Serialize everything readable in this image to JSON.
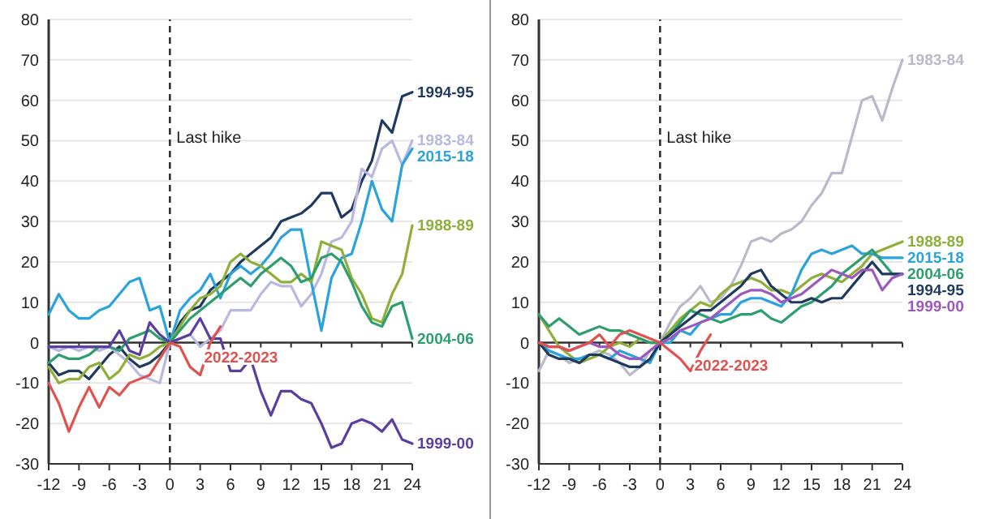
{
  "chart_data": [
    {
      "type": "line",
      "x": [
        -12,
        -11,
        -10,
        -9,
        -8,
        -7,
        -6,
        -5,
        -4,
        -3,
        -2,
        -1,
        0,
        1,
        2,
        3,
        4,
        5,
        6,
        7,
        8,
        9,
        10,
        11,
        12,
        13,
        14,
        15,
        16,
        17,
        18,
        19,
        20,
        21,
        22,
        23,
        24
      ],
      "xlim": [
        -12,
        24
      ],
      "xticks": [
        -12,
        -9,
        -6,
        -3,
        0,
        3,
        6,
        9,
        12,
        15,
        18,
        21,
        24
      ],
      "ylim": [
        -30,
        80
      ],
      "yticks": [
        -30,
        -20,
        -10,
        0,
        10,
        20,
        30,
        40,
        50,
        60,
        70,
        80
      ],
      "grid": "y",
      "ref_lines": [
        {
          "axis": "x",
          "value": 0,
          "label": "Last hike",
          "line_style": "dashed"
        }
      ],
      "series": [
        {
          "name": "1994-95",
          "color": "#1f3a5f",
          "values": [
            -5,
            -8,
            -7,
            -7,
            -9,
            -6,
            -3,
            -1,
            -4,
            -6,
            -5,
            -3,
            0,
            5,
            8,
            9,
            13,
            15,
            17,
            20,
            22,
            24,
            26,
            30,
            31,
            32,
            34,
            37,
            37,
            31,
            33,
            40,
            45,
            55,
            52,
            61,
            62
          ]
        },
        {
          "name": "1983-84",
          "color": "#b8b8e0",
          "values": [
            -1,
            -2,
            -1,
            -2,
            -1,
            -2,
            -1,
            -3,
            -5,
            -8,
            -9,
            -10,
            0,
            1,
            2,
            -1,
            1,
            3,
            8,
            8,
            8,
            12,
            15,
            14,
            14,
            9,
            12,
            17,
            25,
            26,
            30,
            43,
            41,
            48,
            50,
            44,
            50
          ]
        },
        {
          "name": "2015-18",
          "color": "#2aa3dc",
          "values": [
            7,
            12,
            8,
            6,
            6,
            8,
            9,
            12,
            15,
            16,
            8,
            9,
            0,
            8,
            11,
            13,
            17,
            11,
            17,
            19,
            17,
            19,
            22,
            26,
            28,
            28,
            15,
            3,
            16,
            21,
            22,
            30,
            40,
            33,
            30,
            44,
            48
          ]
        },
        {
          "name": "1988-89",
          "color": "#8fae3a",
          "values": [
            -6,
            -10,
            -9,
            -9,
            -6,
            -5,
            -9,
            -7,
            -3,
            -4,
            -3,
            -1,
            0,
            4,
            8,
            11,
            12,
            14,
            20,
            22,
            20,
            19,
            17,
            15,
            15,
            17,
            15,
            25,
            24,
            23,
            16,
            12,
            6,
            5,
            12,
            17,
            29
          ]
        },
        {
          "name": "2004-06",
          "color": "#2e9e6e",
          "values": [
            -5,
            -3,
            -4,
            -4,
            -3,
            -1,
            -1,
            -2,
            1,
            2,
            3,
            1,
            0,
            3,
            6,
            8,
            10,
            12,
            14,
            16,
            14,
            17,
            19,
            21,
            19,
            15,
            16,
            21,
            22,
            20,
            15,
            9,
            5,
            4,
            9,
            10,
            1
          ]
        },
        {
          "name": "1999-00",
          "color": "#5b3fa0",
          "values": [
            -1,
            -1,
            -1,
            -1,
            -1,
            -1,
            -1,
            3,
            -2,
            -3,
            5,
            2,
            0,
            1,
            2,
            6,
            1,
            1,
            -7,
            -7,
            -4,
            -12,
            -18,
            -12,
            -12,
            -14,
            -15,
            -20,
            -26,
            -25,
            -20,
            -19,
            -20,
            -22,
            -19,
            -24,
            -25
          ]
        },
        {
          "name": "2022-2023",
          "color": "#e0524f",
          "x": [
            -12,
            -11,
            -10,
            -9,
            -8,
            -7,
            -6,
            -5,
            -4,
            -3,
            -2,
            -1,
            0,
            1,
            2,
            3,
            4,
            5
          ],
          "values": [
            -10,
            -15,
            -22,
            -16,
            -11,
            -16,
            -11,
            -13,
            -10,
            -9,
            -8,
            -4,
            0,
            -1,
            -6,
            -8,
            0,
            4
          ]
        }
      ]
    },
    {
      "type": "line",
      "x": [
        -12,
        -11,
        -10,
        -9,
        -8,
        -7,
        -6,
        -5,
        -4,
        -3,
        -2,
        -1,
        0,
        1,
        2,
        3,
        4,
        5,
        6,
        7,
        8,
        9,
        10,
        11,
        12,
        13,
        14,
        15,
        16,
        17,
        18,
        19,
        20,
        21,
        22,
        23,
        24
      ],
      "xlim": [
        -12,
        24
      ],
      "xticks": [
        -12,
        -9,
        -6,
        -3,
        0,
        3,
        6,
        9,
        12,
        15,
        18,
        21,
        24
      ],
      "ylim": [
        -30,
        80
      ],
      "yticks": [
        -30,
        -20,
        -10,
        0,
        10,
        20,
        30,
        40,
        50,
        60,
        70,
        80
      ],
      "grid": "y",
      "ref_lines": [
        {
          "axis": "x",
          "value": 0,
          "label": "Last hike",
          "line_style": "dashed"
        }
      ],
      "series": [
        {
          "name": "1983-84",
          "color": "#b9b9c9",
          "values": [
            -7,
            -2,
            -3,
            -5,
            -4,
            -3,
            -2,
            -3,
            -5,
            -8,
            -6,
            -2,
            0,
            5,
            9,
            11,
            14,
            10,
            11,
            14,
            19,
            25,
            26,
            25,
            27,
            28,
            30,
            34,
            37,
            42,
            42,
            51,
            60,
            61,
            55,
            63,
            70
          ]
        },
        {
          "name": "1988-89",
          "color": "#8fae3a",
          "values": [
            7,
            3,
            -1,
            -3,
            -5,
            -4,
            -3,
            -1,
            0,
            -1,
            1,
            0,
            0,
            3,
            6,
            8,
            10,
            9,
            12,
            14,
            15,
            16,
            15,
            13,
            13,
            12,
            14,
            16,
            17,
            16,
            15,
            17,
            19,
            22,
            23,
            24,
            25
          ]
        },
        {
          "name": "2015-18",
          "color": "#2aa3dc",
          "values": [
            0,
            -2,
            -3,
            -4,
            -4,
            -3,
            -3,
            -4,
            -2,
            -3,
            -4,
            -5,
            0,
            0,
            3,
            2,
            5,
            6,
            7,
            7,
            10,
            11,
            11,
            10,
            9,
            12,
            18,
            22,
            23,
            22,
            23,
            24,
            22,
            22,
            21,
            21,
            21
          ]
        },
        {
          "name": "2004-06",
          "color": "#2e9e6e",
          "values": [
            7,
            4,
            6,
            4,
            2,
            3,
            4,
            3,
            3,
            2,
            1,
            0,
            0,
            2,
            5,
            8,
            7,
            6,
            5,
            6,
            7,
            7,
            8,
            6,
            5,
            7,
            9,
            10,
            12,
            14,
            17,
            19,
            21,
            23,
            20,
            17,
            17
          ]
        },
        {
          "name": "1994-95",
          "color": "#1f3a5f",
          "values": [
            0,
            -3,
            -4,
            -4,
            -5,
            -3,
            -3,
            -4,
            -5,
            -6,
            -6,
            -4,
            0,
            2,
            4,
            6,
            8,
            8,
            10,
            12,
            14,
            17,
            18,
            14,
            12,
            10,
            10,
            11,
            10,
            11,
            11,
            14,
            17,
            20,
            17,
            17,
            17
          ]
        },
        {
          "name": "1999-00",
          "color": "#9b59c0",
          "values": [
            0,
            -1,
            -1,
            -2,
            -1,
            0,
            -1,
            -1,
            -3,
            -4,
            -4,
            -2,
            0,
            1,
            3,
            4,
            5,
            6,
            8,
            10,
            12,
            13,
            13,
            12,
            10,
            11,
            12,
            14,
            16,
            18,
            17,
            16,
            18,
            18,
            13,
            16,
            17
          ]
        },
        {
          "name": "2022-2023",
          "color": "#e0524f",
          "x": [
            -12,
            -11,
            -10,
            -9,
            -8,
            -7,
            -6,
            -5,
            -4,
            -3,
            -2,
            -1,
            0,
            1,
            2,
            3,
            4,
            5
          ],
          "values": [
            0,
            -1,
            -1,
            -2,
            -1,
            0,
            2,
            -1,
            2,
            3,
            2,
            1,
            0,
            -2,
            -4,
            -7,
            -2,
            2
          ]
        }
      ]
    }
  ]
}
